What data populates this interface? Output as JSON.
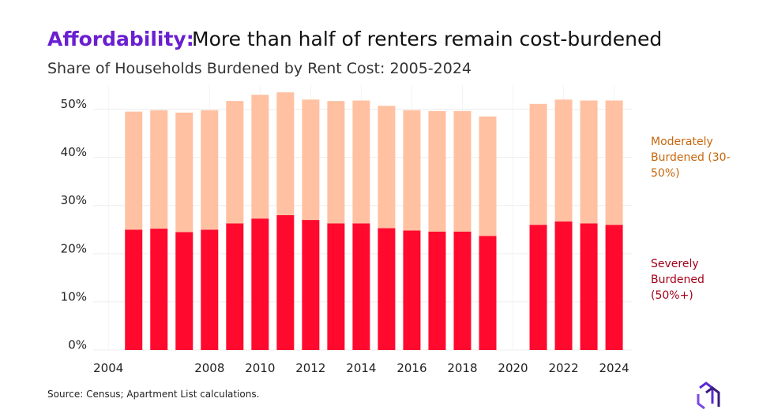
{
  "chart_data": {
    "type": "stacked_bar",
    "title": {
      "highlight": "Affordability:",
      "text": "More than half of renters remain cost-burdened"
    },
    "subtitle": "Share of Households Burdened by Rent Cost: 2005-2024",
    "source": "Source: Census; Apartment List calculations.",
    "x": [
      2005,
      2006,
      2007,
      2008,
      2009,
      2010,
      2011,
      2012,
      2013,
      2014,
      2015,
      2016,
      2017,
      2018,
      2019,
      2020,
      2021,
      2022,
      2023,
      2024
    ],
    "series": [
      {
        "name": "Severely Burdened (50%+)",
        "color": "#ff0a2e",
        "label_color": "#a3001a",
        "values": [
          25,
          25.2,
          24.5,
          25,
          26.3,
          27.3,
          28,
          27,
          26.3,
          26.3,
          25.3,
          24.8,
          24.6,
          24.6,
          23.7,
          null,
          26,
          26.7,
          26.3,
          26
        ]
      },
      {
        "name": "Moderately Burdened (30-50%)",
        "color": "#ffc1a1",
        "label_color": "#c8660c",
        "values": [
          24.5,
          24.6,
          24.8,
          24.8,
          25.4,
          25.7,
          25.5,
          25,
          25.4,
          25.5,
          25.4,
          25,
          25,
          25,
          24.8,
          null,
          25.1,
          25.3,
          25.5,
          25.8
        ]
      }
    ],
    "xlim": [
      2003.4,
      2024.7
    ],
    "xticks": [
      2004,
      2008,
      2010,
      2012,
      2014,
      2016,
      2018,
      2020,
      2022,
      2024
    ],
    "ylim": [
      0,
      55
    ],
    "yticks": [
      {
        "value": 0,
        "label": "0%"
      },
      {
        "value": 10,
        "label": "10%"
      },
      {
        "value": 20,
        "label": "20%"
      },
      {
        "value": 30,
        "label": "30%"
      },
      {
        "value": 40,
        "label": "40%"
      },
      {
        "value": 50,
        "label": "50%"
      }
    ],
    "grid": true
  }
}
